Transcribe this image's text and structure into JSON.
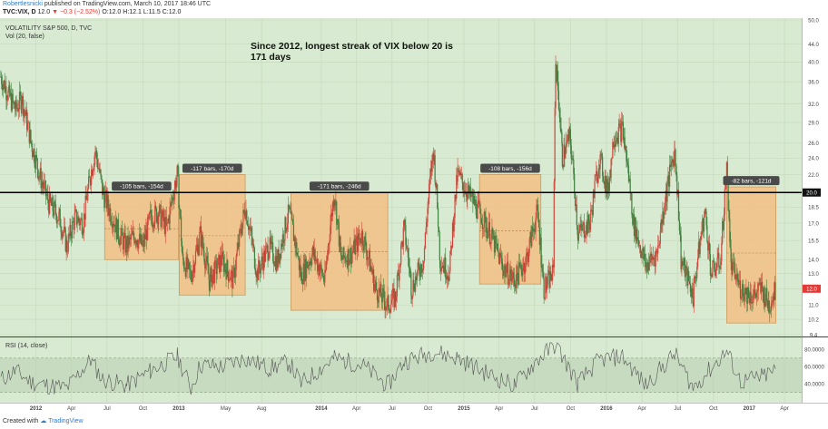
{
  "header": {
    "author": "Robertlesnicki",
    "published_text": "published on TradingView.com, March 10, 2017 18:46 UTC",
    "symbol": "TVC:VIX, D",
    "last": "12.0",
    "change": "−0.3 (−2.52%)",
    "ohlc": "O:12.0 H:12.1 L:11.5 C:12.0"
  },
  "footer": {
    "created_with": "Created with",
    "brand": "TradingView"
  },
  "colors": {
    "background": "#d8ead1",
    "box_fill": "#f3bf85",
    "box_stroke": "#c99a5e",
    "candle_up": "#3f7f3f",
    "candle_down": "#d0463a",
    "threshold_line": "#000000",
    "price_badge": "#e53935"
  },
  "chart_data": [
    {
      "type": "candlestick",
      "title": "VOLATILITY S&P 500, D, TVC",
      "subtitle": "Vol (20, false)",
      "annotation": "Since 2012, longest streak of VIX below 20 is\n171 days",
      "y_axis_labels": [
        "50.0",
        "44.0",
        "40.0",
        "36.0",
        "32.0",
        "29.0",
        "26.0",
        "24.0",
        "22.0",
        "20.0",
        "18.5",
        "17.0",
        "15.5",
        "14.0",
        "13.0",
        "12.0",
        "11.0",
        "10.2",
        "9.4"
      ],
      "ylim": [
        9.4,
        50
      ],
      "y_scale": "log",
      "x_axis_labels": [
        "2012",
        "Apr",
        "Jul",
        "Oct",
        "2013",
        "May",
        "Aug",
        "2014",
        "Apr",
        "Jul",
        "Oct",
        "2015",
        "Apr",
        "Jul",
        "Oct",
        "2016",
        "Apr",
        "Jul",
        "Oct",
        "2017",
        "Apr"
      ],
      "xlim": [
        "2011-10-01",
        "2017-05-15"
      ],
      "last_price": "12.0",
      "threshold_label": "20.0",
      "threshold": 20,
      "series_points": [
        [
          "2011-10-03",
          37
        ],
        [
          "2011-10-20",
          34
        ],
        [
          "2011-11-10",
          31
        ],
        [
          "2011-11-25",
          33
        ],
        [
          "2011-12-20",
          26
        ],
        [
          "2012-01-10",
          22
        ],
        [
          "2012-02-01",
          19
        ],
        [
          "2012-03-01",
          17.5
        ],
        [
          "2012-03-20",
          15
        ],
        [
          "2012-04-10",
          17.5
        ],
        [
          "2012-05-01",
          17
        ],
        [
          "2012-05-20",
          22
        ],
        [
          "2012-06-01",
          25
        ],
        [
          "2012-06-20",
          20
        ],
        [
          "2012-07-10",
          18
        ],
        [
          "2012-08-01",
          16
        ],
        [
          "2012-08-20",
          15
        ],
        [
          "2012-09-10",
          16
        ],
        [
          "2012-10-01",
          15
        ],
        [
          "2012-10-20",
          17.5
        ],
        [
          "2012-11-10",
          18
        ],
        [
          "2012-12-01",
          16.5
        ],
        [
          "2012-12-28",
          22
        ],
        [
          "2013-01-10",
          14
        ],
        [
          "2013-02-01",
          12.8
        ],
        [
          "2013-02-25",
          16
        ],
        [
          "2013-03-20",
          12.5
        ],
        [
          "2013-04-20",
          14
        ],
        [
          "2013-05-20",
          12.5
        ],
        [
          "2013-06-20",
          18.5
        ],
        [
          "2013-07-20",
          13
        ],
        [
          "2013-08-20",
          15
        ],
        [
          "2013-09-10",
          13.8
        ],
        [
          "2013-10-10",
          18
        ],
        [
          "2013-11-10",
          12.8
        ],
        [
          "2013-12-10",
          14.5
        ],
        [
          "2014-01-10",
          12.5
        ],
        [
          "2014-02-03",
          20
        ],
        [
          "2014-02-20",
          14
        ],
        [
          "2014-03-20",
          14.5
        ],
        [
          "2014-04-15",
          16
        ],
        [
          "2014-05-20",
          12
        ],
        [
          "2014-06-20",
          11
        ],
        [
          "2014-07-10",
          11.5
        ],
        [
          "2014-08-01",
          16.5
        ],
        [
          "2014-08-20",
          12
        ],
        [
          "2014-09-20",
          14
        ],
        [
          "2014-10-15",
          25
        ],
        [
          "2014-11-01",
          14
        ],
        [
          "2014-11-25",
          13
        ],
        [
          "2014-12-16",
          22
        ],
        [
          "2015-01-10",
          20
        ],
        [
          "2015-02-10",
          18
        ],
        [
          "2015-03-10",
          16
        ],
        [
          "2015-04-10",
          13.5
        ],
        [
          "2015-05-10",
          12.5
        ],
        [
          "2015-06-10",
          14
        ],
        [
          "2015-07-08",
          18
        ],
        [
          "2015-07-25",
          12
        ],
        [
          "2015-08-18",
          13
        ],
        [
          "2015-08-24",
          40
        ],
        [
          "2015-09-10",
          24
        ],
        [
          "2015-09-29",
          27
        ],
        [
          "2015-10-20",
          16
        ],
        [
          "2015-11-20",
          17
        ],
        [
          "2015-12-14",
          24
        ],
        [
          "2016-01-05",
          20
        ],
        [
          "2016-01-20",
          27
        ],
        [
          "2016-02-11",
          28
        ],
        [
          "2016-03-10",
          17
        ],
        [
          "2016-04-10",
          13.5
        ],
        [
          "2016-05-10",
          14.5
        ],
        [
          "2016-06-24",
          25
        ],
        [
          "2016-07-10",
          14
        ],
        [
          "2016-08-10",
          11.5
        ],
        [
          "2016-09-09",
          18
        ],
        [
          "2016-09-25",
          13
        ],
        [
          "2016-10-20",
          14
        ],
        [
          "2016-11-04",
          22.5
        ],
        [
          "2016-11-15",
          13.5
        ],
        [
          "2016-12-10",
          12
        ],
        [
          "2017-01-10",
          11.5
        ],
        [
          "2017-02-01",
          12
        ],
        [
          "2017-02-20",
          11
        ],
        [
          "2017-03-10",
          12
        ]
      ],
      "streaks": [
        {
          "label": "-105 bars, -154d",
          "start": "2012-06-25",
          "end": "2012-12-31",
          "high": 20.0,
          "low": 14.0,
          "mid": 16.5
        },
        {
          "label": "-117 bars, -170d",
          "start": "2013-01-02",
          "end": "2013-06-20",
          "high": 22.0,
          "low": 11.6,
          "mid": 15.9
        },
        {
          "label": "-171 bars, -246d",
          "start": "2013-10-15",
          "end": "2014-06-20",
          "high": 20.0,
          "low": 10.7,
          "mid": 14.6
        },
        {
          "label": "-108 bars, -156d",
          "start": "2015-02-10",
          "end": "2015-07-17",
          "high": 22.0,
          "low": 12.3,
          "mid": 16.3
        },
        {
          "label": "-82 bars, -121d",
          "start": "2016-11-04",
          "end": "2017-03-10",
          "high": 20.6,
          "low": 10.0,
          "mid": 14.5
        }
      ]
    },
    {
      "type": "line",
      "title": "RSI (14, close)",
      "y_axis_labels": [
        "80.0000",
        "60.0000",
        "40.0000"
      ],
      "ylim": [
        20,
        90
      ],
      "band": [
        30,
        70
      ],
      "series_points": [
        [
          "2011-10-03",
          45
        ],
        [
          "2011-11-10",
          55
        ],
        [
          "2011-12-20",
          42
        ],
        [
          "2012-02-01",
          38
        ],
        [
          "2012-03-20",
          35
        ],
        [
          "2012-05-20",
          68
        ],
        [
          "2012-06-20",
          45
        ],
        [
          "2012-08-20",
          38
        ],
        [
          "2012-10-20",
          55
        ],
        [
          "2012-12-28",
          72
        ],
        [
          "2013-02-01",
          35
        ],
        [
          "2013-02-25",
          62
        ],
        [
          "2013-04-20",
          60
        ],
        [
          "2013-06-20",
          70
        ],
        [
          "2013-08-20",
          58
        ],
        [
          "2013-10-10",
          65
        ],
        [
          "2013-11-10",
          40
        ],
        [
          "2014-02-03",
          70
        ],
        [
          "2014-04-15",
          62
        ],
        [
          "2014-06-20",
          38
        ],
        [
          "2014-08-01",
          66
        ],
        [
          "2014-10-15",
          78
        ],
        [
          "2014-12-16",
          70
        ],
        [
          "2015-03-10",
          50
        ],
        [
          "2015-05-10",
          38
        ],
        [
          "2015-07-08",
          68
        ],
        [
          "2015-08-24",
          86
        ],
        [
          "2015-10-20",
          40
        ],
        [
          "2015-12-14",
          68
        ],
        [
          "2016-02-11",
          72
        ],
        [
          "2016-04-10",
          38
        ],
        [
          "2016-06-24",
          75
        ],
        [
          "2016-08-10",
          35
        ],
        [
          "2016-11-04",
          78
        ],
        [
          "2016-12-10",
          42
        ],
        [
          "2017-02-01",
          48
        ],
        [
          "2017-03-10",
          56
        ]
      ]
    }
  ]
}
